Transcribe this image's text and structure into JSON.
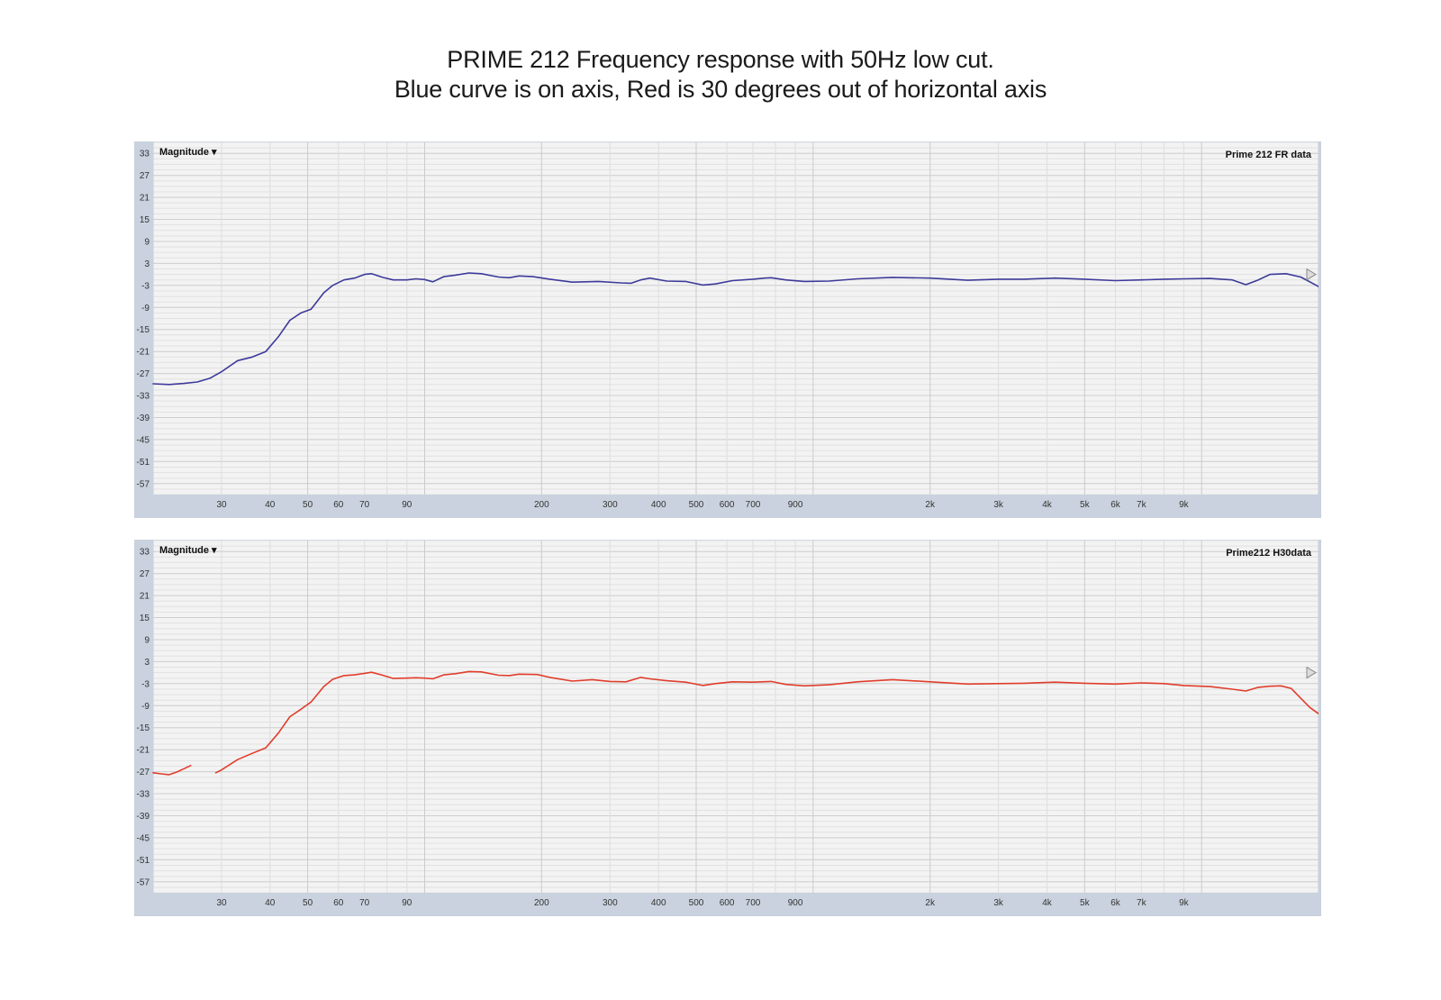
{
  "title": {
    "line1": "PRIME 212 Frequency response with 50Hz low cut.",
    "line2": "Blue curve is on axis, Red is 30 degrees out of horizontal axis"
  },
  "chart_data": [
    {
      "type": "line",
      "menu_label": "Magnitude ▾",
      "series_label": "Prime 212 FR data",
      "x_scale": "log",
      "xlim": [
        20,
        20000
      ],
      "ylim": [
        -60,
        36
      ],
      "grid": true,
      "y_ticks": [
        33,
        27,
        21,
        15,
        9,
        3,
        -3,
        -9,
        -15,
        -21,
        -27,
        -33,
        -39,
        -45,
        -51,
        -57
      ],
      "x_ticks": [
        {
          "value": 30,
          "label": "30"
        },
        {
          "value": 40,
          "label": "40"
        },
        {
          "value": 50,
          "label": "50"
        },
        {
          "value": 60,
          "label": "60"
        },
        {
          "value": 70,
          "label": "70"
        },
        {
          "value": 90,
          "label": "90"
        },
        {
          "value": 200,
          "label": "200"
        },
        {
          "value": 300,
          "label": "300"
        },
        {
          "value": 400,
          "label": "400"
        },
        {
          "value": 500,
          "label": "500"
        },
        {
          "value": 600,
          "label": "600"
        },
        {
          "value": 700,
          "label": "700"
        },
        {
          "value": 900,
          "label": "900"
        },
        {
          "value": 2000,
          "label": "2k"
        },
        {
          "value": 3000,
          "label": "3k"
        },
        {
          "value": 4000,
          "label": "4k"
        },
        {
          "value": 5000,
          "label": "5k"
        },
        {
          "value": 6000,
          "label": "6k"
        },
        {
          "value": 7000,
          "label": "7k"
        },
        {
          "value": 9000,
          "label": "9k"
        }
      ],
      "marker_level": 0,
      "series": [
        {
          "color": "#3d3a9a",
          "segments": [
            [
              [
                20,
                -29.8
              ],
              [
                22,
                -30
              ],
              [
                24,
                -29.7
              ],
              [
                26,
                -29.3
              ],
              [
                28,
                -28.3
              ],
              [
                30,
                -26.5
              ],
              [
                33,
                -23.5
              ],
              [
                36,
                -22.5
              ],
              [
                39,
                -21
              ],
              [
                42,
                -17
              ],
              [
                45,
                -12.5
              ],
              [
                48,
                -10.5
              ],
              [
                51,
                -9.5
              ],
              [
                55,
                -5
              ],
              [
                58,
                -3
              ],
              [
                62,
                -1.5
              ],
              [
                66,
                -1
              ],
              [
                70,
                0
              ],
              [
                73,
                0.2
              ],
              [
                78,
                -0.8
              ],
              [
                83,
                -1.5
              ],
              [
                90,
                -1.5
              ],
              [
                95,
                -1.2
              ],
              [
                100,
                -1.4
              ],
              [
                105,
                -2
              ],
              [
                112,
                -0.6
              ],
              [
                120,
                -0.2
              ],
              [
                130,
                0.4
              ],
              [
                140,
                0.2
              ],
              [
                155,
                -0.7
              ],
              [
                165,
                -0.9
              ],
              [
                175,
                -0.4
              ],
              [
                190,
                -0.6
              ],
              [
                210,
                -1.3
              ],
              [
                240,
                -2.1
              ],
              [
                280,
                -1.9
              ],
              [
                320,
                -2.3
              ],
              [
                340,
                -2.4
              ],
              [
                360,
                -1.5
              ],
              [
                380,
                -1
              ],
              [
                420,
                -1.8
              ],
              [
                470,
                -1.9
              ],
              [
                520,
                -2.9
              ],
              [
                560,
                -2.6
              ],
              [
                620,
                -1.7
              ],
              [
                700,
                -1.3
              ],
              [
                750,
                -1
              ],
              [
                780,
                -0.9
              ],
              [
                850,
                -1.5
              ],
              [
                950,
                -1.9
              ],
              [
                1100,
                -1.8
              ],
              [
                1300,
                -1.2
              ],
              [
                1600,
                -0.8
              ],
              [
                2000,
                -1
              ],
              [
                2500,
                -1.6
              ],
              [
                3000,
                -1.3
              ],
              [
                3500,
                -1.3
              ],
              [
                4200,
                -1
              ],
              [
                5000,
                -1.3
              ],
              [
                6000,
                -1.7
              ],
              [
                7000,
                -1.5
              ],
              [
                8000,
                -1.3
              ],
              [
                9000,
                -1.2
              ],
              [
                10500,
                -1.1
              ],
              [
                12000,
                -1.5
              ],
              [
                13000,
                -2.8
              ],
              [
                14000,
                -1.5
              ],
              [
                15000,
                0
              ],
              [
                16500,
                0.2
              ],
              [
                18000,
                -0.7
              ],
              [
                20000,
                -3.3
              ]
            ]
          ]
        }
      ]
    },
    {
      "type": "line",
      "menu_label": "Magnitude ▾",
      "series_label": "Prime212 H30data",
      "x_scale": "log",
      "xlim": [
        20,
        20000
      ],
      "ylim": [
        -60,
        36
      ],
      "grid": true,
      "y_ticks": [
        33,
        27,
        21,
        15,
        9,
        3,
        -3,
        -9,
        -15,
        -21,
        -27,
        -33,
        -39,
        -45,
        -51,
        -57
      ],
      "x_ticks": [
        {
          "value": 30,
          "label": "30"
        },
        {
          "value": 40,
          "label": "40"
        },
        {
          "value": 50,
          "label": "50"
        },
        {
          "value": 60,
          "label": "60"
        },
        {
          "value": 70,
          "label": "70"
        },
        {
          "value": 90,
          "label": "90"
        },
        {
          "value": 200,
          "label": "200"
        },
        {
          "value": 300,
          "label": "300"
        },
        {
          "value": 400,
          "label": "400"
        },
        {
          "value": 500,
          "label": "500"
        },
        {
          "value": 600,
          "label": "600"
        },
        {
          "value": 700,
          "label": "700"
        },
        {
          "value": 900,
          "label": "900"
        },
        {
          "value": 2000,
          "label": "2k"
        },
        {
          "value": 3000,
          "label": "3k"
        },
        {
          "value": 4000,
          "label": "4k"
        },
        {
          "value": 5000,
          "label": "5k"
        },
        {
          "value": 6000,
          "label": "6k"
        },
        {
          "value": 7000,
          "label": "7k"
        },
        {
          "value": 9000,
          "label": "9k"
        }
      ],
      "marker_level": 0,
      "series": [
        {
          "color": "#e03d2b",
          "segments": [
            [
              [
                20,
                -27.3
              ],
              [
                21,
                -27.6
              ],
              [
                22,
                -27.8
              ],
              [
                23,
                -27.1
              ],
              [
                24,
                -26.2
              ],
              [
                25,
                -25.3
              ]
            ],
            [
              [
                29,
                -27.3
              ],
              [
                30,
                -26.5
              ],
              [
                33,
                -23.7
              ],
              [
                36,
                -22
              ],
              [
                39,
                -20.5
              ],
              [
                42,
                -16.5
              ],
              [
                45,
                -12
              ],
              [
                48,
                -10
              ],
              [
                51,
                -8
              ],
              [
                55,
                -3.8
              ],
              [
                58,
                -1.8
              ],
              [
                62,
                -0.8
              ],
              [
                66,
                -0.6
              ],
              [
                70,
                -0.2
              ],
              [
                73,
                0.1
              ],
              [
                78,
                -0.7
              ],
              [
                83,
                -1.6
              ],
              [
                90,
                -1.5
              ],
              [
                95,
                -1.4
              ],
              [
                100,
                -1.5
              ],
              [
                105,
                -1.7
              ],
              [
                112,
                -0.6
              ],
              [
                120,
                -0.3
              ],
              [
                130,
                0.3
              ],
              [
                140,
                0.2
              ],
              [
                155,
                -0.7
              ],
              [
                165,
                -0.8
              ],
              [
                175,
                -0.4
              ],
              [
                195,
                -0.5
              ],
              [
                210,
                -1.3
              ],
              [
                240,
                -2.3
              ],
              [
                270,
                -1.9
              ],
              [
                300,
                -2.4
              ],
              [
                330,
                -2.5
              ],
              [
                360,
                -1.3
              ],
              [
                380,
                -1.7
              ],
              [
                420,
                -2.2
              ],
              [
                470,
                -2.6
              ],
              [
                520,
                -3.5
              ],
              [
                560,
                -3
              ],
              [
                620,
                -2.5
              ],
              [
                700,
                -2.6
              ],
              [
                780,
                -2.4
              ],
              [
                850,
                -3.2
              ],
              [
                950,
                -3.6
              ],
              [
                1100,
                -3.3
              ],
              [
                1300,
                -2.5
              ],
              [
                1600,
                -1.9
              ],
              [
                2000,
                -2.5
              ],
              [
                2500,
                -3.1
              ],
              [
                3000,
                -3
              ],
              [
                3500,
                -2.9
              ],
              [
                4200,
                -2.6
              ],
              [
                5000,
                -2.9
              ],
              [
                6000,
                -3.1
              ],
              [
                7000,
                -2.8
              ],
              [
                8000,
                -3
              ],
              [
                9000,
                -3.5
              ],
              [
                10500,
                -3.8
              ],
              [
                12000,
                -4.5
              ],
              [
                13000,
                -5
              ],
              [
                14000,
                -4
              ],
              [
                15000,
                -3.7
              ],
              [
                16000,
                -3.6
              ],
              [
                17000,
                -4.3
              ],
              [
                18000,
                -7
              ],
              [
                19000,
                -9.5
              ],
              [
                20000,
                -11.2
              ]
            ]
          ]
        }
      ]
    }
  ]
}
